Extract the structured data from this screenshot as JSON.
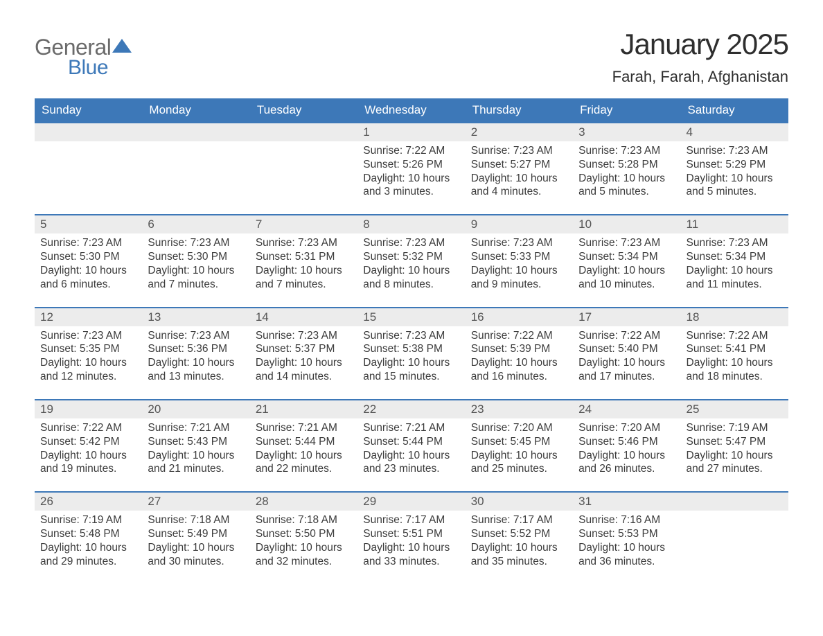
{
  "brand": {
    "word1": "General",
    "word2": "Blue",
    "swoosh_color": "#3d78b8"
  },
  "title": {
    "month": "January 2025",
    "location": "Farah, Farah, Afghanistan"
  },
  "colors": {
    "header_bg": "#3d78b8",
    "header_text": "#ffffff",
    "daynum_bg": "#ececec",
    "rule": "#3d78b8",
    "body_text": "#3b3b3b"
  },
  "day_labels": [
    "Sunday",
    "Monday",
    "Tuesday",
    "Wednesday",
    "Thursday",
    "Friday",
    "Saturday"
  ],
  "labels": {
    "sunrise": "Sunrise:",
    "sunset": "Sunset:",
    "daylight": "Daylight:"
  },
  "weeks": [
    [
      null,
      null,
      null,
      {
        "n": "1",
        "sr": "7:22 AM",
        "ss": "5:26 PM",
        "dl": "10 hours and 3 minutes."
      },
      {
        "n": "2",
        "sr": "7:23 AM",
        "ss": "5:27 PM",
        "dl": "10 hours and 4 minutes."
      },
      {
        "n": "3",
        "sr": "7:23 AM",
        "ss": "5:28 PM",
        "dl": "10 hours and 5 minutes."
      },
      {
        "n": "4",
        "sr": "7:23 AM",
        "ss": "5:29 PM",
        "dl": "10 hours and 5 minutes."
      }
    ],
    [
      {
        "n": "5",
        "sr": "7:23 AM",
        "ss": "5:30 PM",
        "dl": "10 hours and 6 minutes."
      },
      {
        "n": "6",
        "sr": "7:23 AM",
        "ss": "5:30 PM",
        "dl": "10 hours and 7 minutes."
      },
      {
        "n": "7",
        "sr": "7:23 AM",
        "ss": "5:31 PM",
        "dl": "10 hours and 7 minutes."
      },
      {
        "n": "8",
        "sr": "7:23 AM",
        "ss": "5:32 PM",
        "dl": "10 hours and 8 minutes."
      },
      {
        "n": "9",
        "sr": "7:23 AM",
        "ss": "5:33 PM",
        "dl": "10 hours and 9 minutes."
      },
      {
        "n": "10",
        "sr": "7:23 AM",
        "ss": "5:34 PM",
        "dl": "10 hours and 10 minutes."
      },
      {
        "n": "11",
        "sr": "7:23 AM",
        "ss": "5:34 PM",
        "dl": "10 hours and 11 minutes."
      }
    ],
    [
      {
        "n": "12",
        "sr": "7:23 AM",
        "ss": "5:35 PM",
        "dl": "10 hours and 12 minutes."
      },
      {
        "n": "13",
        "sr": "7:23 AM",
        "ss": "5:36 PM",
        "dl": "10 hours and 13 minutes."
      },
      {
        "n": "14",
        "sr": "7:23 AM",
        "ss": "5:37 PM",
        "dl": "10 hours and 14 minutes."
      },
      {
        "n": "15",
        "sr": "7:23 AM",
        "ss": "5:38 PM",
        "dl": "10 hours and 15 minutes."
      },
      {
        "n": "16",
        "sr": "7:22 AM",
        "ss": "5:39 PM",
        "dl": "10 hours and 16 minutes."
      },
      {
        "n": "17",
        "sr": "7:22 AM",
        "ss": "5:40 PM",
        "dl": "10 hours and 17 minutes."
      },
      {
        "n": "18",
        "sr": "7:22 AM",
        "ss": "5:41 PM",
        "dl": "10 hours and 18 minutes."
      }
    ],
    [
      {
        "n": "19",
        "sr": "7:22 AM",
        "ss": "5:42 PM",
        "dl": "10 hours and 19 minutes."
      },
      {
        "n": "20",
        "sr": "7:21 AM",
        "ss": "5:43 PM",
        "dl": "10 hours and 21 minutes."
      },
      {
        "n": "21",
        "sr": "7:21 AM",
        "ss": "5:44 PM",
        "dl": "10 hours and 22 minutes."
      },
      {
        "n": "22",
        "sr": "7:21 AM",
        "ss": "5:44 PM",
        "dl": "10 hours and 23 minutes."
      },
      {
        "n": "23",
        "sr": "7:20 AM",
        "ss": "5:45 PM",
        "dl": "10 hours and 25 minutes."
      },
      {
        "n": "24",
        "sr": "7:20 AM",
        "ss": "5:46 PM",
        "dl": "10 hours and 26 minutes."
      },
      {
        "n": "25",
        "sr": "7:19 AM",
        "ss": "5:47 PM",
        "dl": "10 hours and 27 minutes."
      }
    ],
    [
      {
        "n": "26",
        "sr": "7:19 AM",
        "ss": "5:48 PM",
        "dl": "10 hours and 29 minutes."
      },
      {
        "n": "27",
        "sr": "7:18 AM",
        "ss": "5:49 PM",
        "dl": "10 hours and 30 minutes."
      },
      {
        "n": "28",
        "sr": "7:18 AM",
        "ss": "5:50 PM",
        "dl": "10 hours and 32 minutes."
      },
      {
        "n": "29",
        "sr": "7:17 AM",
        "ss": "5:51 PM",
        "dl": "10 hours and 33 minutes."
      },
      {
        "n": "30",
        "sr": "7:17 AM",
        "ss": "5:52 PM",
        "dl": "10 hours and 35 minutes."
      },
      {
        "n": "31",
        "sr": "7:16 AM",
        "ss": "5:53 PM",
        "dl": "10 hours and 36 minutes."
      },
      null
    ]
  ]
}
